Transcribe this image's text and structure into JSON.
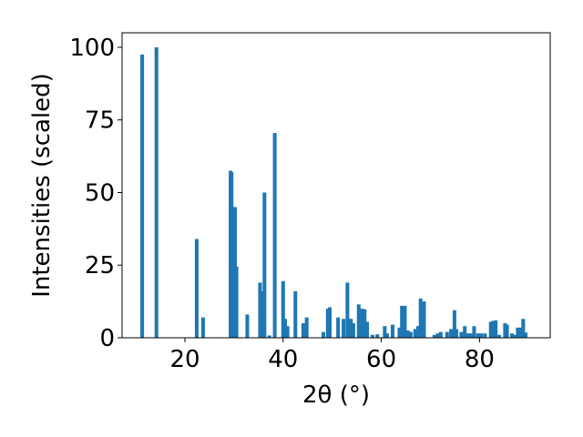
{
  "chart_data": {
    "type": "bar",
    "title": "",
    "xlabel": "2θ (°)",
    "ylabel": "Intensities (scaled)",
    "xlim": [
      7.2,
      94.4
    ],
    "ylim": [
      0,
      105
    ],
    "xticks": [
      20,
      40,
      60,
      80
    ],
    "yticks": [
      0,
      25,
      50,
      75,
      100
    ],
    "grid": false,
    "legend": "none",
    "bar_color": "#1f77b4",
    "x": [
      11.3,
      14.2,
      22.4,
      23.7,
      29.3,
      29.5,
      30.2,
      30.5,
      32.7,
      35.3,
      35.7,
      36.2,
      37.2,
      38.3,
      40.0,
      40.4,
      40.9,
      42.5,
      44.1,
      44.8,
      48.2,
      49.1,
      49.5,
      51.2,
      52.3,
      53.1,
      53.8,
      54.3,
      55.4,
      56.1,
      56.6,
      57.1,
      58.2,
      59.2,
      60.7,
      61.2,
      62.3,
      63.7,
      64.2,
      64.8,
      65.4,
      66.0,
      66.9,
      67.5,
      68.0,
      68.7,
      70.8,
      71.5,
      72.1,
      73.4,
      74.2,
      74.9,
      75.3,
      76.3,
      77.0,
      77.7,
      78.4,
      78.9,
      79.7,
      80.3,
      81.1,
      82.3,
      82.8,
      83.3,
      84.0,
      85.2,
      85.6,
      86.6,
      87.1,
      87.8,
      88.4,
      88.9,
      89.4
    ],
    "values": [
      97.5,
      100,
      34,
      7,
      57.5,
      57,
      45,
      24.5,
      8,
      19,
      16,
      50,
      0.8,
      70.5,
      19.5,
      6.5,
      4,
      16,
      5,
      7,
      2,
      10,
      10.5,
      7,
      6.5,
      19,
      6.5,
      5,
      11.5,
      10,
      9.8,
      5.5,
      1,
      1.2,
      4,
      1.5,
      4.5,
      3.5,
      11,
      11,
      2.5,
      2,
      3,
      4,
      13.5,
      12.5,
      1,
      1.5,
      2,
      2,
      3,
      9.5,
      3,
      2,
      4,
      1.5,
      1.5,
      4,
      1.5,
      1.5,
      1.5,
      5.5,
      5.8,
      6,
      1,
      5,
      4.5,
      1.5,
      1,
      3.5,
      3.5,
      6.5,
      1.8
    ]
  }
}
